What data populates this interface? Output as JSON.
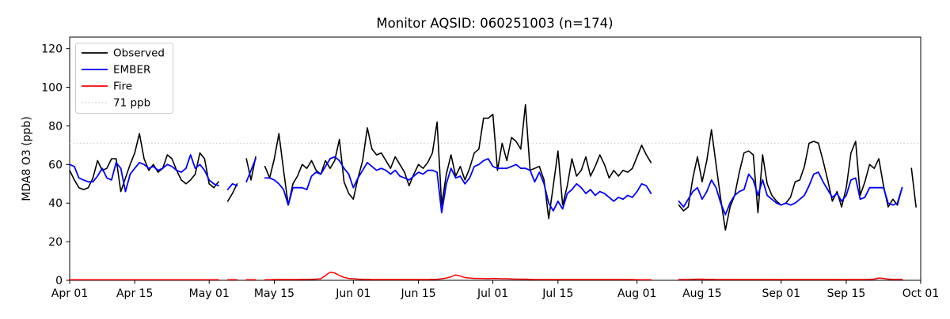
{
  "chart_data": {
    "type": "line",
    "title": "Monitor AQSID: 060251003 (n=174)",
    "ylabel": "MDA8 O3 (ppb)",
    "xlabel": "",
    "ylim": [
      0,
      126
    ],
    "yticks": [
      0,
      20,
      40,
      60,
      80,
      100,
      120
    ],
    "x_start": "Apr 01",
    "x_end": "Oct 01",
    "x_total_days": 183,
    "x_frequency": "daily",
    "xticks": [
      {
        "label": "Apr 01",
        "day": 0
      },
      {
        "label": "Apr 15",
        "day": 14
      },
      {
        "label": "May 01",
        "day": 30
      },
      {
        "label": "May 15",
        "day": 44
      },
      {
        "label": "Jun 01",
        "day": 61
      },
      {
        "label": "Jun 15",
        "day": 75
      },
      {
        "label": "Jul 01",
        "day": 91
      },
      {
        "label": "Jul 15",
        "day": 105
      },
      {
        "label": "Aug 01",
        "day": 122
      },
      {
        "label": "Aug 15",
        "day": 136
      },
      {
        "label": "Sep 01",
        "day": 153
      },
      {
        "label": "Sep 15",
        "day": 167
      },
      {
        "label": "Oct 01",
        "day": 183
      }
    ],
    "threshold": {
      "value": 71,
      "label": "71 ppb",
      "color": "#d3d3d3"
    },
    "legend_position": "upper left",
    "grid": false,
    "legend": [
      {
        "label": "Observed",
        "color": "#000000",
        "style": "solid"
      },
      {
        "label": "EMBER",
        "color": "#0000ff",
        "style": "solid"
      },
      {
        "label": "Fire",
        "color": "#ff0000",
        "style": "solid"
      },
      {
        "label": "71 ppb",
        "color": "#d3d3d3",
        "style": "dotted"
      }
    ],
    "missing_dates": [
      "May 04",
      "May 08",
      "May 12",
      "Aug 05",
      "Aug 06",
      "Aug 07",
      "Aug 08",
      "Aug 09",
      "Sep 28"
    ],
    "series": [
      {
        "name": "Observed",
        "color": "#000000",
        "width": 1.6,
        "values": [
          57,
          52,
          48,
          47,
          48,
          53,
          62,
          57,
          58,
          63,
          63,
          46,
          53,
          60,
          66,
          76,
          63,
          57,
          60,
          56,
          58,
          65,
          63,
          57,
          52,
          50,
          52,
          55,
          66,
          63,
          50,
          48,
          51,
          null,
          41,
          45,
          50,
          null,
          63,
          52,
          64,
          null,
          59,
          53,
          63,
          76,
          57,
          39,
          50,
          54,
          60,
          58,
          62,
          57,
          55,
          62,
          58,
          62,
          73,
          51,
          45,
          42,
          53,
          62,
          79,
          68,
          65,
          66,
          62,
          58,
          64,
          60,
          56,
          49,
          55,
          60,
          58,
          61,
          66,
          82,
          39,
          55,
          65,
          54,
          59,
          52,
          58,
          66,
          68,
          84,
          84,
          86,
          57,
          71,
          62,
          74,
          72,
          68,
          91,
          57,
          58,
          59,
          52,
          32,
          49,
          67,
          39,
          49,
          63,
          54,
          57,
          64,
          54,
          59,
          65,
          60,
          53,
          57,
          54,
          57,
          56,
          58,
          64,
          70,
          65,
          61,
          null,
          null,
          null,
          null,
          null,
          39,
          36,
          38,
          53,
          64,
          51,
          62,
          78,
          60,
          42,
          26,
          38,
          44,
          56,
          66,
          67,
          65,
          35,
          65,
          50,
          44,
          41,
          39,
          40,
          43,
          51,
          52,
          59,
          71,
          72,
          71,
          62,
          52,
          41,
          46,
          38,
          48,
          66,
          72,
          44,
          51,
          60,
          58,
          63,
          49,
          38,
          42,
          39,
          48,
          null,
          58,
          38
        ]
      },
      {
        "name": "EMBER",
        "color": "#0000ff",
        "width": 1.8,
        "values": [
          60,
          59,
          53,
          52,
          51,
          51,
          54,
          58,
          53,
          52,
          61,
          58,
          46,
          55,
          58,
          61,
          60,
          58,
          59,
          57,
          58,
          60,
          59,
          57,
          56,
          58,
          65,
          58,
          60,
          57,
          52,
          50,
          49,
          null,
          47,
          50,
          49,
          null,
          51,
          57,
          63,
          null,
          53,
          53,
          52,
          50,
          47,
          39,
          48,
          48,
          48,
          47,
          54,
          56,
          55,
          59,
          63,
          64,
          62,
          58,
          55,
          48,
          53,
          57,
          61,
          59,
          57,
          58,
          57,
          55,
          57,
          54,
          53,
          52,
          54,
          56,
          55,
          57,
          57,
          56,
          35,
          50,
          58,
          53,
          54,
          50,
          53,
          59,
          60,
          62,
          63,
          59,
          58,
          58,
          58,
          59,
          60,
          58,
          58,
          57,
          51,
          56,
          50,
          40,
          36,
          41,
          37,
          45,
          47,
          50,
          48,
          45,
          47,
          44,
          46,
          45,
          43,
          41,
          43,
          42,
          44,
          43,
          46,
          50,
          49,
          45,
          null,
          null,
          null,
          null,
          null,
          41,
          38,
          42,
          46,
          48,
          42,
          46,
          52,
          48,
          40,
          34,
          40,
          44,
          46,
          47,
          55,
          52,
          44,
          52,
          44,
          42,
          40,
          39,
          40,
          39,
          40,
          42,
          44,
          49,
          55,
          56,
          51,
          47,
          43,
          45,
          41,
          44,
          52,
          53,
          42,
          43,
          48,
          48,
          48,
          48,
          40,
          39,
          40,
          48,
          null,
          null,
          null
        ]
      },
      {
        "name": "Fire",
        "color": "#ff0000",
        "width": 1.5,
        "values": [
          0.3,
          0.3,
          0.3,
          0.3,
          0.3,
          0.3,
          0.3,
          0.3,
          0.3,
          0.3,
          0.3,
          0.3,
          0.3,
          0.3,
          0.3,
          0.3,
          0.3,
          0.3,
          0.3,
          0.3,
          0.3,
          0.3,
          0.3,
          0.3,
          0.3,
          0.3,
          0.3,
          0.3,
          0.3,
          0.3,
          0.3,
          0.3,
          0.3,
          null,
          0.3,
          0.3,
          0.3,
          null,
          0.3,
          0.3,
          0.3,
          null,
          0.3,
          0.3,
          0.4,
          0.4,
          0.4,
          0.4,
          0.4,
          0.4,
          0.5,
          0.5,
          0.5,
          0.6,
          0.8,
          2.5,
          4.2,
          3.8,
          2.5,
          1.5,
          1.0,
          0.8,
          0.6,
          0.5,
          0.5,
          0.4,
          0.4,
          0.4,
          0.4,
          0.4,
          0.4,
          0.4,
          0.4,
          0.4,
          0.4,
          0.4,
          0.4,
          0.4,
          0.5,
          0.5,
          0.8,
          1.2,
          1.8,
          2.8,
          2.2,
          1.4,
          1.2,
          1.0,
          1.0,
          0.9,
          0.8,
          1.0,
          0.9,
          0.8,
          0.8,
          0.7,
          0.6,
          0.6,
          0.6,
          0.5,
          0.4,
          0.4,
          0.4,
          0.4,
          0.4,
          0.4,
          0.4,
          0.4,
          0.4,
          0.4,
          0.4,
          0.4,
          0.4,
          0.4,
          0.4,
          0.4,
          0.4,
          0.4,
          0.4,
          0.4,
          0.4,
          0.4,
          0.3,
          0.3,
          0.3,
          0.3,
          null,
          null,
          null,
          null,
          null,
          0.4,
          0.4,
          0.4,
          0.5,
          0.6,
          0.6,
          0.5,
          0.5,
          0.4,
          0.4,
          0.4,
          0.4,
          0.4,
          0.4,
          0.4,
          0.4,
          0.4,
          0.4,
          0.4,
          0.4,
          0.4,
          0.4,
          0.4,
          0.4,
          0.4,
          0.4,
          0.4,
          0.4,
          0.4,
          0.4,
          0.4,
          0.4,
          0.4,
          0.4,
          0.4,
          0.4,
          0.4,
          0.4,
          0.4,
          0.4,
          0.4,
          0.5,
          0.6,
          1.2,
          1.0,
          0.6,
          0.5,
          0.4,
          0.5,
          null,
          null,
          null
        ]
      }
    ]
  }
}
